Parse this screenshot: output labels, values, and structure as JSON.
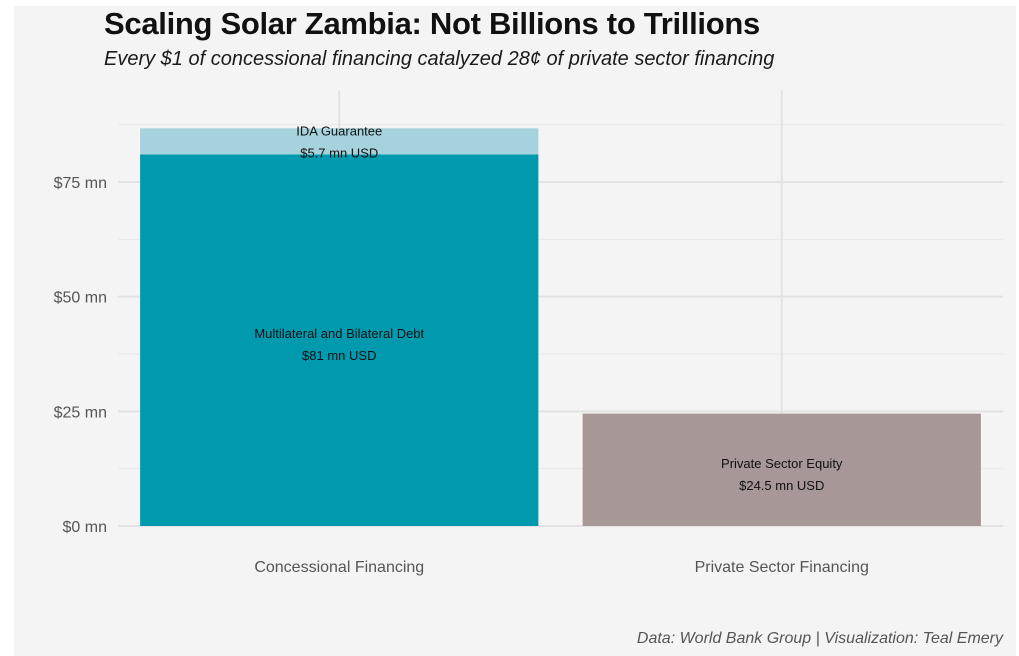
{
  "header": {
    "title": "Scaling Solar Zambia: Not Billions to Trillions",
    "subtitle": "Every $1 of concessional financing catalyzed 28¢ of private sector financing"
  },
  "caption": "Data: World Bank Group | Visualization: Teal Emery",
  "chart_data": {
    "type": "bar",
    "stacked": true,
    "categories": [
      "Concessional Financing",
      "Private Sector Financing"
    ],
    "series": [
      {
        "name": "Multilateral and Bilateral Debt",
        "values": [
          81,
          0
        ],
        "color": "#009aaf",
        "label": "$81 mn USD"
      },
      {
        "name": "IDA Guarantee",
        "values": [
          5.7,
          0
        ],
        "color": "#a5d2dc",
        "label": "$5.7 mn USD"
      },
      {
        "name": "Private Sector Equity",
        "values": [
          0,
          24.5
        ],
        "color": "#a79796",
        "label": "$24.5 mn USD"
      }
    ],
    "yticks": [
      0,
      25,
      50,
      75
    ],
    "ytick_labels": [
      "$0 mn",
      "$25 mn",
      "$50 mn",
      "$75 mn"
    ],
    "ylim": [
      0,
      95
    ],
    "grid": true,
    "legend": "none",
    "title": "Scaling Solar Zambia: Not Billions to Trillions",
    "xlabel": "",
    "ylabel": ""
  }
}
